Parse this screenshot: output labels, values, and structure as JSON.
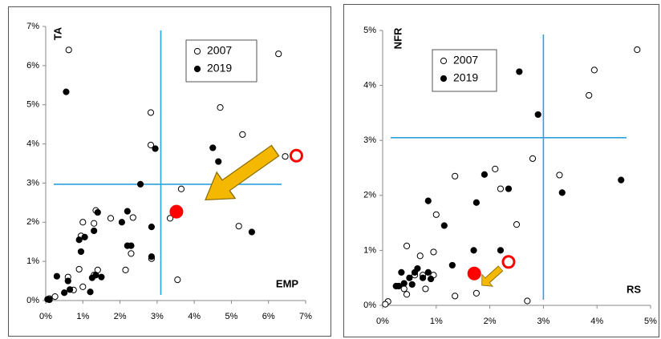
{
  "chart_data": [
    {
      "type": "scatter",
      "y_label": "TA",
      "x_label": "EMP",
      "xlim": [
        0,
        7
      ],
      "ylim": [
        0,
        7
      ],
      "xticks": [
        {
          "value": 0,
          "label": "0%"
        },
        {
          "value": 1,
          "label": "1%"
        },
        {
          "value": 2,
          "label": "2%"
        },
        {
          "value": 3,
          "label": "3%"
        },
        {
          "value": 4,
          "label": "4%"
        },
        {
          "value": 5,
          "label": "5%"
        },
        {
          "value": 6,
          "label": "6%"
        },
        {
          "value": 7,
          "label": "7%"
        }
      ],
      "yticks": [
        {
          "value": 0,
          "label": "0%"
        },
        {
          "value": 1,
          "label": "1%"
        },
        {
          "value": 2,
          "label": "2%"
        },
        {
          "value": 3,
          "label": "3%"
        },
        {
          "value": 4,
          "label": "4%"
        },
        {
          "value": 5,
          "label": "5%"
        },
        {
          "value": 6,
          "label": "6%"
        },
        {
          "value": 7,
          "label": "7%"
        }
      ],
      "ref_x": 3.1,
      "ref_y": 2.97,
      "ref_color": "#29a3dc",
      "series": [
        {
          "name": "2007",
          "marker": "open",
          "color": "#000000",
          "x": [
            0.62,
            6.27,
            2.83,
            4.7,
            5.3,
            2.83,
            6.45,
            3.65,
            3.35,
            1.0,
            0.95,
            1.3,
            1.35,
            1.75,
            2.35,
            2.15,
            2.3,
            2.85,
            3.55,
            5.2,
            0.9,
            0.6,
            0.25,
            0.75,
            1.0,
            1.3,
            1.4,
            0.1
          ],
          "y": [
            6.4,
            6.3,
            4.8,
            4.93,
            4.24,
            3.97,
            3.68,
            2.85,
            2.1,
            2.0,
            1.65,
            1.97,
            2.3,
            2.1,
            2.12,
            0.78,
            1.2,
            1.07,
            0.53,
            1.9,
            0.8,
            0.6,
            0.1,
            0.27,
            0.35,
            0.65,
            0.78,
            0.05
          ]
        },
        {
          "name": "2019",
          "marker": "filled",
          "color": "#000000",
          "x": [
            0.55,
            2.95,
            4.5,
            4.65,
            2.55,
            2.2,
            2.05,
            1.3,
            0.9,
            1.05,
            0.95,
            2.2,
            2.3,
            2.85,
            2.85,
            5.55,
            1.4,
            1.35,
            1.25,
            1.5,
            0.3,
            0.6,
            0.65,
            0.5,
            1.2,
            0.05,
            0.1
          ],
          "y": [
            5.33,
            3.88,
            3.9,
            3.55,
            2.97,
            2.28,
            2.0,
            1.78,
            1.55,
            1.62,
            1.25,
            1.4,
            1.4,
            1.88,
            1.12,
            1.75,
            2.25,
            0.65,
            0.58,
            0.6,
            0.62,
            0.5,
            0.28,
            0.2,
            0.22,
            0.03,
            0.02
          ]
        }
      ],
      "highlights": {
        "color": "#ff0000",
        "marker": [
          "open",
          "filled"
        ],
        "x": [
          6.75,
          3.52
        ],
        "y": [
          3.7,
          2.27
        ]
      }
    },
    {
      "type": "scatter",
      "y_label": "NFR",
      "x_label": "RS",
      "xlim": [
        0,
        5
      ],
      "ylim": [
        0,
        5
      ],
      "xticks": [
        {
          "value": 0,
          "label": "0%"
        },
        {
          "value": 1,
          "label": "1%"
        },
        {
          "value": 2,
          "label": "2%"
        },
        {
          "value": 3,
          "label": "3%"
        },
        {
          "value": 4,
          "label": "4%"
        },
        {
          "value": 5,
          "label": "5%"
        }
      ],
      "yticks": [
        {
          "value": 0,
          "label": "0%"
        },
        {
          "value": 1,
          "label": "1%"
        },
        {
          "value": 2,
          "label": "2%"
        },
        {
          "value": 3,
          "label": "3%"
        },
        {
          "value": 4,
          "label": "4%"
        },
        {
          "value": 5,
          "label": "5%"
        }
      ],
      "ref_x": 3.0,
      "ref_y": 3.05,
      "ref_color": "#29a3dc",
      "series": [
        {
          "name": "2007",
          "marker": "open",
          "color": "#000000",
          "x": [
            4.75,
            3.95,
            3.85,
            2.8,
            3.3,
            2.1,
            2.2,
            1.35,
            1.0,
            2.5,
            0.45,
            0.7,
            0.95,
            2.7,
            1.75,
            1.35,
            0.6,
            0.4,
            0.8,
            0.1,
            0.05,
            0.45,
            0.95,
            0.75
          ],
          "y": [
            4.65,
            4.28,
            3.82,
            2.67,
            2.37,
            2.48,
            2.12,
            2.35,
            1.65,
            1.47,
            1.08,
            0.9,
            0.97,
            0.08,
            0.22,
            0.17,
            0.55,
            0.3,
            0.3,
            0.07,
            0.02,
            0.2,
            0.55,
            0.55
          ]
        },
        {
          "name": "2019",
          "marker": "filled",
          "color": "#000000",
          "x": [
            2.55,
            2.9,
            1.9,
            2.35,
            0.85,
            1.75,
            3.35,
            4.45,
            1.15,
            1.7,
            2.2,
            1.3,
            0.3,
            0.25,
            0.35,
            0.5,
            0.6,
            0.65,
            0.9,
            0.85,
            0.75,
            0.55,
            0.4
          ],
          "y": [
            4.25,
            3.47,
            2.38,
            2.12,
            1.9,
            1.87,
            2.05,
            2.28,
            1.45,
            1.0,
            1.0,
            0.73,
            0.35,
            0.35,
            0.6,
            0.5,
            0.6,
            0.67,
            0.48,
            0.6,
            0.5,
            0.38,
            0.4
          ]
        }
      ],
      "highlights": {
        "color": "#ff0000",
        "marker": [
          "open",
          "filled"
        ],
        "x": [
          2.35,
          1.71
        ],
        "y": [
          0.79,
          0.58
        ]
      }
    }
  ]
}
